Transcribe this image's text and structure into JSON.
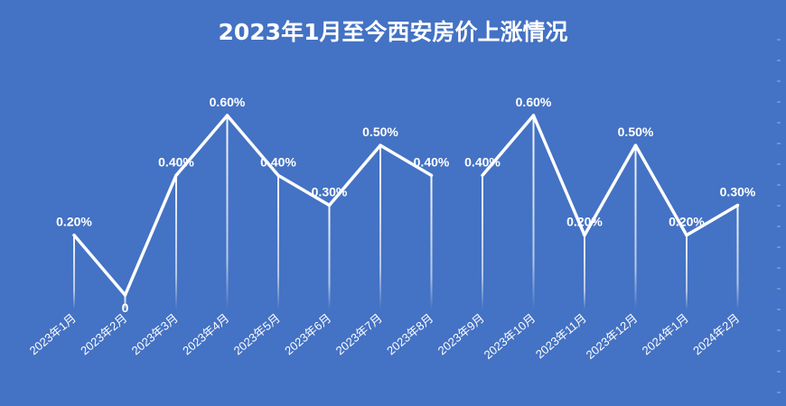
{
  "chart_data": {
    "type": "line",
    "title": "2023年1月至今西安房价上涨情况",
    "xlabel": "",
    "ylabel": "",
    "categories": [
      "2023年1月",
      "2023年2月",
      "2023年3月",
      "2023年4月",
      "2023年5月",
      "2023年6月",
      "2023年7月",
      "2023年8月",
      "2023年9月",
      "2023年10月",
      "2023年11月",
      "2023年12月",
      "2024年1月",
      "2024年2月"
    ],
    "values": [
      0.2,
      0,
      0.4,
      0.6,
      0.4,
      0.3,
      0.5,
      0.4,
      0.4,
      0.6,
      0.2,
      0.5,
      0.2,
      0.3
    ],
    "data_labels": [
      "0.20%",
      "0",
      "0.40%",
      "0.60%",
      "0.40%",
      "0.30%",
      "0.50%",
      "0.40%",
      "0.40%",
      "0.60%",
      "0.20%",
      "0.50%",
      "0.20%",
      "0.30%"
    ],
    "ylim": [
      0,
      0.6
    ],
    "line_breaks_after": [
      7
    ],
    "grid": false,
    "legend": "none",
    "colors": {
      "background": "#4472C4",
      "line": "#FFFFFF",
      "text": "#FFFFFF"
    }
  }
}
